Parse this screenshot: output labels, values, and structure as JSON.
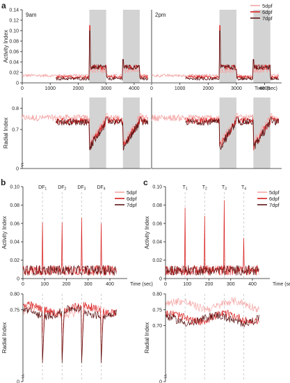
{
  "colors": {
    "d5": "#f4a6a6",
    "d6": "#d91e1e",
    "d7": "#5e1414",
    "shade": "#d3d3d3",
    "dash": "#b8b8b8",
    "axis": "#222222"
  },
  "chart_data": [
    {
      "panel_letter": "a",
      "type": "line",
      "xlabel": "Time (sec)",
      "ylabel_top": "Activity Index",
      "ylabel_bottom": "Radial Index",
      "time_of_day_labels": [
        "9am",
        "2pm"
      ],
      "x_ticks": [
        0,
        1000,
        2000,
        3000,
        4000
      ],
      "xlim": [
        0,
        4600
      ],
      "activity_ylim": [
        0,
        0.14
      ],
      "activity_yticks": [
        0,
        0.02,
        0.04,
        0.06,
        0.08,
        0.1,
        0.12,
        0.14
      ],
      "radial_ylim": [
        0,
        0.8
      ],
      "radial_yticks": [
        0.7,
        0.8
      ],
      "shaded_intervals_sec": [
        [
          2400,
          3000
        ],
        [
          3600,
          4200
        ]
      ],
      "legend": [
        "5dpf",
        "6dpf",
        "7dpf"
      ],
      "series": [
        {
          "name": "5dpf",
          "activity_baseline": 0.014,
          "radial_baseline": 0.755,
          "start_sec": 0
        },
        {
          "name": "6dpf",
          "activity_baseline": 0.011,
          "radial_baseline": 0.74,
          "start_sec": 1200
        },
        {
          "name": "7dpf",
          "activity_baseline": 0.008,
          "radial_baseline": 0.735,
          "start_sec": 1200
        }
      ]
    },
    {
      "panel_letter": "b",
      "type": "line",
      "xlabel": "Time (sec)",
      "ylabel_top": "Activity Index",
      "ylabel_bottom": "Radial Index",
      "x_ticks": [
        0,
        100,
        200,
        300,
        400
      ],
      "xlim": [
        0,
        480
      ],
      "activity_ylim": [
        0,
        0.1
      ],
      "activity_yticks": [
        0,
        0.02,
        0.04,
        0.06,
        0.08,
        0.1
      ],
      "radial_ylim": [
        0,
        0.8
      ],
      "radial_yticks": [
        0.75,
        0.8
      ],
      "event_labels": [
        {
          "prefix": "DF",
          "sub": "1",
          "t": 90
        },
        {
          "prefix": "DF",
          "sub": "2",
          "t": 180
        },
        {
          "prefix": "DF",
          "sub": "3",
          "t": 270
        },
        {
          "prefix": "DF",
          "sub": "4",
          "t": 360
        }
      ],
      "peaks_activity": [
        0.061,
        0.061,
        0.066,
        0.06
      ],
      "legend": [
        "5dpf",
        "6dpf",
        "7dpf"
      ]
    },
    {
      "panel_letter": "c",
      "type": "line",
      "xlabel": "Time (sec)",
      "ylabel_top": "Activity Index",
      "ylabel_bottom": "Radial Index",
      "x_ticks": [
        0,
        100,
        200,
        300,
        400
      ],
      "xlim": [
        0,
        480
      ],
      "activity_ylim": [
        0,
        0.1
      ],
      "activity_yticks": [
        0,
        0.02,
        0.04,
        0.06,
        0.08,
        0.1
      ],
      "radial_ylim": [
        0,
        0.8
      ],
      "radial_yticks": [
        0.7,
        0.75,
        0.8
      ],
      "event_labels": [
        {
          "prefix": "T",
          "sub": "1",
          "t": 90
        },
        {
          "prefix": "T",
          "sub": "2",
          "t": 180
        },
        {
          "prefix": "T",
          "sub": "3",
          "t": 270
        },
        {
          "prefix": "T",
          "sub": "4",
          "t": 360
        }
      ],
      "peaks_activity": [
        0.077,
        0.068,
        0.085,
        0.044
      ],
      "legend": [
        "5dpf",
        "6dpf",
        "7dpf"
      ]
    }
  ]
}
